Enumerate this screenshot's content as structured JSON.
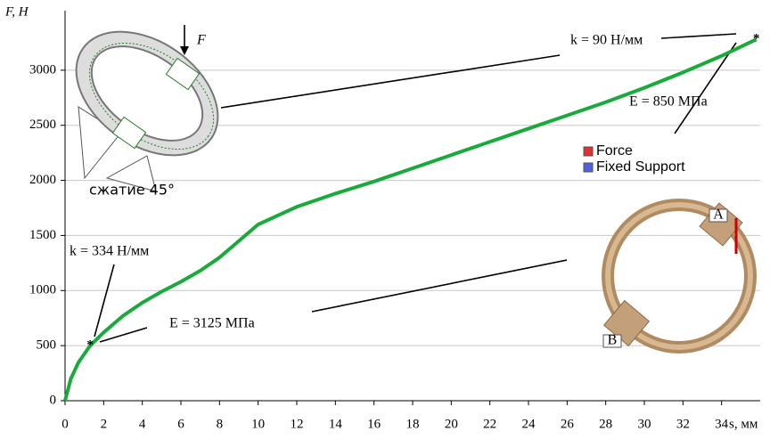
{
  "chart_data": {
    "type": "line",
    "y_label": "F, Н",
    "x_label": "s, мм",
    "xlim": [
      0,
      36
    ],
    "ylim": [
      0,
      3500
    ],
    "xticks": [
      0,
      2,
      4,
      6,
      8,
      10,
      12,
      14,
      16,
      18,
      20,
      22,
      24,
      26,
      28,
      30,
      32,
      34
    ],
    "yticks": [
      0,
      500,
      1000,
      1500,
      2000,
      2500,
      3000
    ],
    "grid": true,
    "x": [
      0,
      0.3,
      0.7,
      1.3,
      2,
      3,
      4,
      5,
      6,
      7,
      8,
      9,
      10,
      12,
      14,
      16,
      18,
      20,
      22,
      24,
      26,
      28,
      30,
      32,
      34,
      35.8
    ],
    "series": [
      {
        "color": "#1aaa3c",
        "values": [
          0,
          200,
          350,
          500,
          620,
          770,
          890,
          990,
          1080,
          1180,
          1300,
          1450,
          1600,
          1760,
          1880,
          1990,
          2110,
          2230,
          2350,
          2470,
          2590,
          2710,
          2840,
          2980,
          3130,
          3280
        ]
      }
    ],
    "points": [
      {
        "x": 1.3,
        "y": 500
      },
      {
        "x": 35.8,
        "y": 3280
      }
    ],
    "annotations": [
      "k = 90 Н/мм",
      "E = 850 МПа",
      "k = 334 Н/мм",
      "E = 3125 МПа",
      "сжатие 45°",
      "F",
      "Force",
      "Fixed Support",
      "A",
      "B"
    ]
  }
}
